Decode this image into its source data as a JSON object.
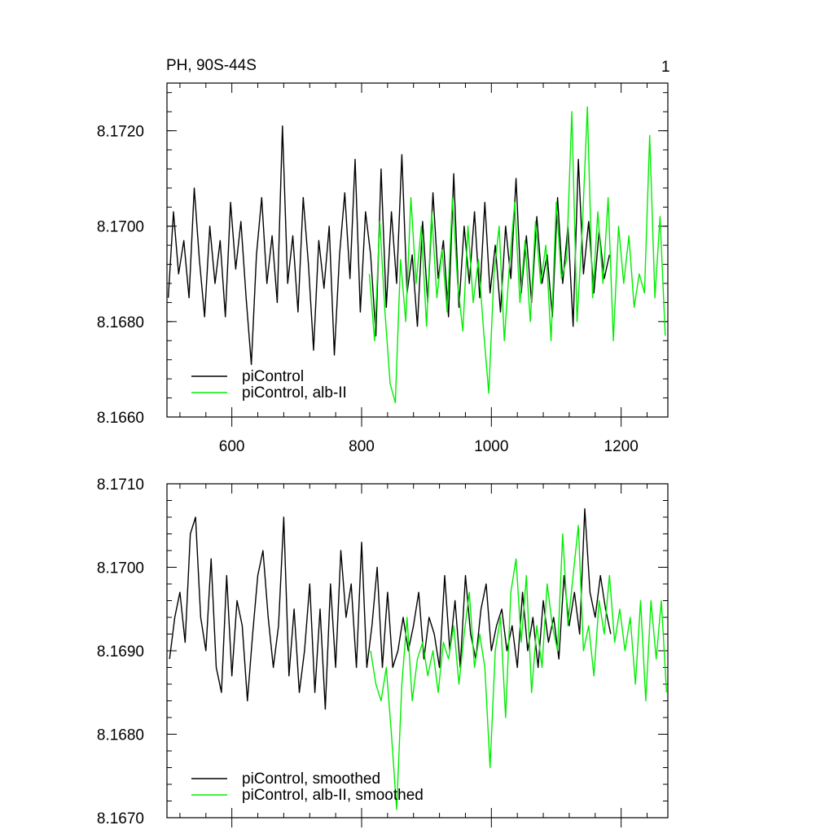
{
  "title": "PH, 90S-44S",
  "panel_number": "1",
  "colors": {
    "piControl": "#000000",
    "alb_II": "#00ee00"
  },
  "chart_data": [
    {
      "type": "line",
      "title": "PH, 90S-44S",
      "xlim": [
        500,
        1272
      ],
      "ylim": [
        8.166,
        8.173
      ],
      "x_ticks": [
        600,
        800,
        1000,
        1200
      ],
      "x_tick_labels": [
        "600",
        "800",
        "1000",
        "1200"
      ],
      "y_ticks": [
        8.166,
        8.168,
        8.17,
        8.172
      ],
      "y_tick_labels": [
        "8.1660",
        "8.1680",
        "8.1700",
        "8.1720"
      ],
      "grid": false,
      "legend_position": "bottom-left",
      "series": [
        {
          "name": "piControl",
          "color": "#000000",
          "x": [
            502,
            510,
            518,
            526,
            534,
            542,
            550,
            558,
            566,
            574,
            582,
            590,
            598,
            606,
            614,
            622,
            630,
            638,
            646,
            654,
            662,
            670,
            678,
            686,
            694,
            702,
            710,
            718,
            726,
            734,
            742,
            750,
            758,
            766,
            774,
            782,
            790,
            798,
            806,
            814,
            822,
            830,
            838,
            846,
            854,
            862,
            870,
            878,
            886,
            894,
            902,
            910,
            918,
            926,
            934,
            942,
            950,
            958,
            966,
            974,
            982,
            990,
            998,
            1006,
            1014,
            1022,
            1030,
            1038,
            1046,
            1054,
            1062,
            1070,
            1078,
            1086,
            1094,
            1102,
            1110,
            1118,
            1126,
            1134,
            1142,
            1150,
            1158,
            1166,
            1174,
            1182
          ],
          "values": [
            8.1685,
            8.1703,
            8.169,
            8.1697,
            8.1685,
            8.1708,
            8.1693,
            8.1681,
            8.17,
            8.1688,
            8.1697,
            8.1681,
            8.1705,
            8.1691,
            8.1701,
            8.1685,
            8.1671,
            8.1694,
            8.1706,
            8.1688,
            8.1698,
            8.1684,
            8.1721,
            8.1688,
            8.1698,
            8.1682,
            8.1706,
            8.1692,
            8.1674,
            8.1697,
            8.1687,
            8.17,
            8.1673,
            8.1694,
            8.1707,
            8.1689,
            8.1714,
            8.1682,
            8.1703,
            8.1694,
            8.1677,
            8.1712,
            8.1683,
            8.1703,
            8.1688,
            8.1715,
            8.1686,
            8.1694,
            8.1679,
            8.1701,
            8.1684,
            8.1707,
            8.1689,
            8.1697,
            8.1681,
            8.1711,
            8.1683,
            8.17,
            8.1688,
            8.1703,
            8.1685,
            8.1705,
            8.1686,
            8.1696,
            8.1682,
            8.17,
            8.1689,
            8.171,
            8.1686,
            8.1698,
            8.1684,
            8.1702,
            8.1688,
            8.1694,
            8.1681,
            8.1706,
            8.1688,
            8.17,
            8.1679,
            8.1714,
            8.169,
            8.1701,
            8.1686,
            8.1699,
            8.1689,
            8.1694
          ]
        },
        {
          "name": "piControl, alb-II",
          "color": "#00ee00",
          "x": [
            812,
            820,
            828,
            836,
            844,
            852,
            860,
            868,
            876,
            884,
            892,
            900,
            908,
            916,
            924,
            932,
            940,
            948,
            956,
            964,
            972,
            980,
            988,
            996,
            1004,
            1012,
            1020,
            1028,
            1036,
            1044,
            1052,
            1060,
            1068,
            1076,
            1084,
            1092,
            1100,
            1108,
            1116,
            1124,
            1132,
            1140,
            1148,
            1156,
            1164,
            1172,
            1180,
            1188,
            1196,
            1204,
            1212,
            1220,
            1228,
            1236,
            1244,
            1252,
            1260,
            1268
          ],
          "values": [
            8.169,
            8.1676,
            8.1701,
            8.1682,
            8.1667,
            8.1663,
            8.1693,
            8.168,
            8.1706,
            8.1688,
            8.17,
            8.1679,
            8.1703,
            8.1685,
            8.1695,
            8.1682,
            8.1706,
            8.1688,
            8.1678,
            8.17,
            8.1684,
            8.1693,
            8.1678,
            8.1665,
            8.169,
            8.17,
            8.1676,
            8.1692,
            8.1705,
            8.1684,
            8.1697,
            8.168,
            8.1701,
            8.1688,
            8.1696,
            8.1676,
            8.1705,
            8.1689,
            8.1693,
            8.1724,
            8.168,
            8.1699,
            8.1725,
            8.1685,
            8.1703,
            8.1688,
            8.1706,
            8.1676,
            8.17,
            8.1688,
            8.1698,
            8.1683,
            8.169,
            8.1686,
            8.1719,
            8.1685,
            8.1702,
            8.1677
          ]
        }
      ],
      "legend": [
        "piControl",
        "piControl, alb-II"
      ]
    },
    {
      "type": "line",
      "xlim": [
        500,
        1272
      ],
      "ylim": [
        8.167,
        8.171
      ],
      "x_ticks": [
        600,
        800,
        1000,
        1200
      ],
      "y_ticks": [
        8.167,
        8.168,
        8.169,
        8.17,
        8.171
      ],
      "y_tick_labels": [
        "8.1670",
        "8.1680",
        "8.1690",
        "8.1700",
        "8.1710"
      ],
      "grid": false,
      "legend_position": "bottom-left",
      "series": [
        {
          "name": "piControl, smoothed",
          "color": "#000000",
          "x": [
            504,
            512,
            520,
            528,
            536,
            544,
            552,
            560,
            568,
            576,
            584,
            592,
            600,
            608,
            616,
            624,
            632,
            640,
            648,
            656,
            664,
            672,
            680,
            688,
            696,
            704,
            712,
            720,
            728,
            736,
            744,
            752,
            760,
            768,
            776,
            784,
            792,
            800,
            808,
            816,
            824,
            832,
            840,
            848,
            856,
            864,
            872,
            880,
            888,
            896,
            904,
            912,
            920,
            928,
            936,
            944,
            952,
            960,
            968,
            976,
            984,
            992,
            1000,
            1008,
            1016,
            1024,
            1032,
            1040,
            1048,
            1056,
            1064,
            1072,
            1080,
            1088,
            1096,
            1104,
            1112,
            1120,
            1128,
            1136,
            1144,
            1152,
            1160,
            1168,
            1176,
            1184
          ],
          "values": [
            8.1689,
            8.1694,
            8.1697,
            8.1691,
            8.1704,
            8.1706,
            8.1694,
            8.169,
            8.1701,
            8.1688,
            8.1685,
            8.1699,
            8.1687,
            8.1696,
            8.1693,
            8.1684,
            8.1692,
            8.1699,
            8.1702,
            8.1694,
            8.1688,
            8.1693,
            8.1706,
            8.1687,
            8.1695,
            8.1685,
            8.169,
            8.1698,
            8.1685,
            8.1695,
            8.1683,
            8.1698,
            8.1688,
            8.1702,
            8.1694,
            8.1698,
            8.1688,
            8.1703,
            8.1688,
            8.1693,
            8.17,
            8.1688,
            8.1697,
            8.1688,
            8.169,
            8.1694,
            8.169,
            8.1693,
            8.1697,
            8.1689,
            8.1694,
            8.1692,
            8.1688,
            8.1699,
            8.169,
            8.1696,
            8.1688,
            8.1699,
            8.1692,
            8.1689,
            8.1695,
            8.1698,
            8.169,
            8.1693,
            8.1695,
            8.169,
            8.1693,
            8.1688,
            8.1697,
            8.169,
            8.1694,
            8.1688,
            8.1696,
            8.1691,
            8.1694,
            8.1689,
            8.1699,
            8.1693,
            8.1697,
            8.1692,
            8.1707,
            8.1697,
            8.1694,
            8.1699,
            8.1695,
            8.1692
          ]
        },
        {
          "name": "piControl, alb-II, smoothed",
          "color": "#00ee00",
          "x": [
            814,
            822,
            830,
            838,
            846,
            854,
            862,
            870,
            878,
            886,
            894,
            902,
            910,
            918,
            926,
            934,
            942,
            950,
            958,
            966,
            974,
            982,
            990,
            998,
            1006,
            1014,
            1022,
            1030,
            1038,
            1046,
            1054,
            1062,
            1070,
            1078,
            1086,
            1094,
            1102,
            1110,
            1118,
            1126,
            1134,
            1142,
            1150,
            1158,
            1166,
            1174,
            1182,
            1190,
            1198,
            1206,
            1214,
            1222,
            1230,
            1238,
            1246,
            1254,
            1262,
            1270
          ],
          "values": [
            8.169,
            8.1686,
            8.1684,
            8.1688,
            8.168,
            8.1671,
            8.1686,
            8.1694,
            8.1684,
            8.1689,
            8.1691,
            8.1687,
            8.169,
            8.1685,
            8.1691,
            8.1689,
            8.1693,
            8.1686,
            8.1692,
            8.1697,
            8.1688,
            8.1692,
            8.1688,
            8.1676,
            8.169,
            8.1694,
            8.1682,
            8.1697,
            8.1701,
            8.1691,
            8.1699,
            8.1685,
            8.1693,
            8.1688,
            8.1698,
            8.1693,
            8.169,
            8.1704,
            8.1693,
            8.1699,
            8.1705,
            8.169,
            8.1693,
            8.1687,
            8.1696,
            8.1692,
            8.1699,
            8.1691,
            8.1695,
            8.169,
            8.1694,
            8.1686,
            8.1696,
            8.1684,
            8.1696,
            8.1689,
            8.1696,
            8.1685
          ]
        }
      ],
      "legend": [
        "piControl, smoothed",
        "piControl, alb-II, smoothed"
      ]
    }
  ]
}
